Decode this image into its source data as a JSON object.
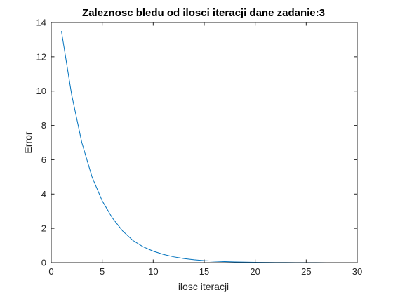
{
  "chart_data": {
    "type": "line",
    "title": "Zaleznosc bledu od ilosci iteracji dane zadanie:3",
    "xlabel": "ilosc iteracji",
    "ylabel": "Error",
    "xlim": [
      0,
      30
    ],
    "ylim": [
      0,
      14
    ],
    "xticks": [
      "0",
      "5",
      "10",
      "15",
      "20",
      "25",
      "30"
    ],
    "yticks": [
      "0",
      "2",
      "4",
      "6",
      "8",
      "10",
      "12",
      "14"
    ],
    "grid": false,
    "box": true,
    "series": [
      {
        "color": "#0072BD",
        "x": [
          1,
          2,
          3,
          4,
          5,
          6,
          7,
          8,
          9,
          10,
          11,
          12,
          13,
          14,
          15,
          16,
          17,
          18,
          19,
          20,
          21,
          22,
          23,
          24,
          25,
          26,
          27,
          28,
          29,
          30
        ],
        "y": [
          13.5,
          9.8,
          7.0,
          5.0,
          3.6,
          2.6,
          1.85,
          1.3,
          0.93,
          0.67,
          0.48,
          0.34,
          0.24,
          0.17,
          0.12,
          0.085,
          0.06,
          0.043,
          0.031,
          0.022,
          0.016,
          0.011,
          0.008,
          0.006,
          0.004,
          0.003,
          0.002,
          0.0015,
          0.001,
          0.0007
        ]
      }
    ]
  }
}
